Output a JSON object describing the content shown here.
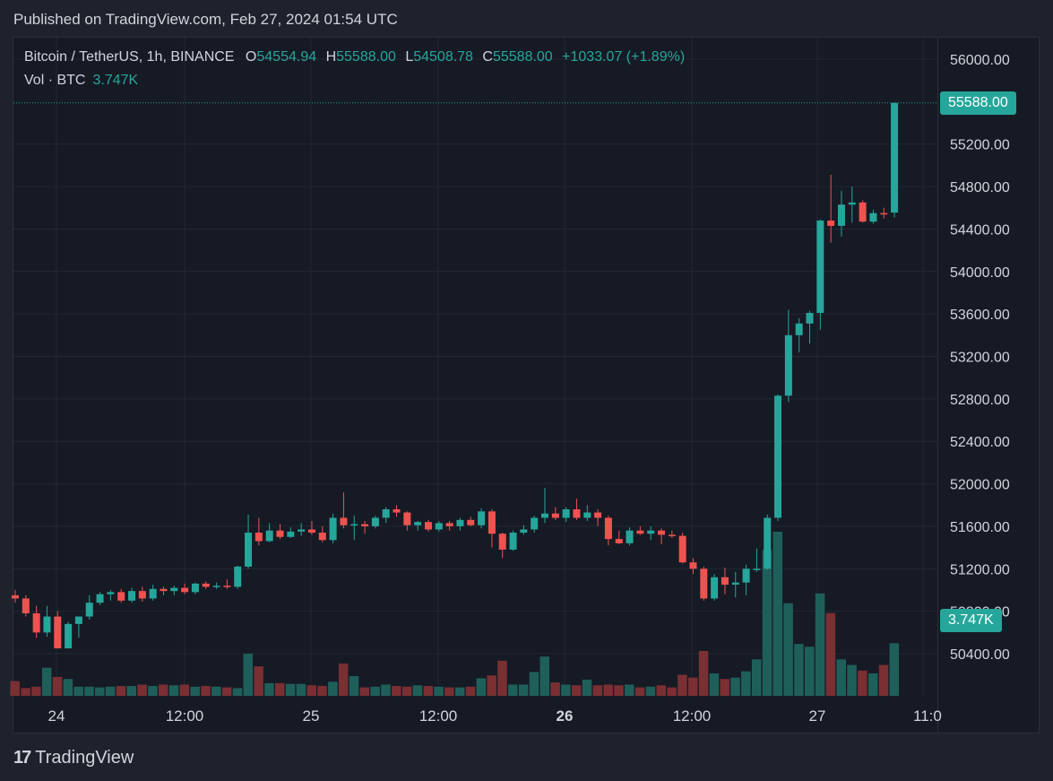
{
  "header": {
    "published": "Published on TradingView.com, Feb 27, 2024 01:54 UTC"
  },
  "legend": {
    "symbol": "Bitcoin / TetherUS, 1h, BINANCE",
    "o_label": "O",
    "o": "54554.94",
    "h_label": "H",
    "h": "55588.00",
    "l_label": "L",
    "l": "54508.78",
    "c_label": "C",
    "c": "55588.00",
    "change": "+1033.07 (+1.89%)"
  },
  "volume_legend": {
    "label": "Vol · BTC",
    "value": "3.747K"
  },
  "price_tag": "55588.00",
  "volume_tag": "3.747K",
  "footer": {
    "brand": "TradingView",
    "logo": "17"
  },
  "colors": {
    "up": "#26a69a",
    "down": "#ef5350",
    "vol_up": "#1f5f5a",
    "vol_down": "#7a2f33",
    "background": "#161a25"
  },
  "chart_data": {
    "type": "candlestick",
    "interval": "1h",
    "y_ticks": [
      "56000.00",
      "55200.00",
      "54800.00",
      "54400.00",
      "54000.00",
      "53600.00",
      "53200.00",
      "52800.00",
      "52400.00",
      "52000.00",
      "51600.00",
      "51200.00",
      "50800.00",
      "50400.00"
    ],
    "x_ticks": [
      "24",
      "12:00",
      "25",
      "12:00",
      "26",
      "12:00",
      "27",
      "11:0"
    ],
    "ylim": [
      50000,
      56300
    ],
    "candles": [
      {
        "o": 50950,
        "h": 51000,
        "l": 50880,
        "c": 50920
      },
      {
        "o": 50920,
        "h": 50950,
        "l": 50750,
        "c": 50780
      },
      {
        "o": 50780,
        "h": 50850,
        "l": 50550,
        "c": 50600
      },
      {
        "o": 50600,
        "h": 50850,
        "l": 50560,
        "c": 50750
      },
      {
        "o": 50750,
        "h": 50800,
        "l": 50450,
        "c": 50450
      },
      {
        "o": 50450,
        "h": 50700,
        "l": 50450,
        "c": 50680
      },
      {
        "o": 50680,
        "h": 50750,
        "l": 50550,
        "c": 50750
      },
      {
        "o": 50750,
        "h": 50950,
        "l": 50720,
        "c": 50880
      },
      {
        "o": 50880,
        "h": 50980,
        "l": 50860,
        "c": 50960
      },
      {
        "o": 50960,
        "h": 51000,
        "l": 50900,
        "c": 50980
      },
      {
        "o": 50980,
        "h": 51010,
        "l": 50880,
        "c": 50900
      },
      {
        "o": 50900,
        "h": 51020,
        "l": 50880,
        "c": 50990
      },
      {
        "o": 50990,
        "h": 51030,
        "l": 50890,
        "c": 50920
      },
      {
        "o": 50920,
        "h": 51050,
        "l": 50900,
        "c": 51010
      },
      {
        "o": 51010,
        "h": 51030,
        "l": 50950,
        "c": 50990
      },
      {
        "o": 50990,
        "h": 51040,
        "l": 50950,
        "c": 51020
      },
      {
        "o": 51020,
        "h": 51060,
        "l": 50960,
        "c": 50980
      },
      {
        "o": 50980,
        "h": 51070,
        "l": 50960,
        "c": 51060
      },
      {
        "o": 51060,
        "h": 51080,
        "l": 51010,
        "c": 51030
      },
      {
        "o": 51030,
        "h": 51070,
        "l": 51010,
        "c": 51040
      },
      {
        "o": 51040,
        "h": 51100,
        "l": 51010,
        "c": 51030
      },
      {
        "o": 51030,
        "h": 51230,
        "l": 51010,
        "c": 51220
      },
      {
        "o": 51220,
        "h": 51710,
        "l": 51200,
        "c": 51540
      },
      {
        "o": 51540,
        "h": 51680,
        "l": 51420,
        "c": 51460
      },
      {
        "o": 51460,
        "h": 51630,
        "l": 51450,
        "c": 51560
      },
      {
        "o": 51560,
        "h": 51620,
        "l": 51480,
        "c": 51500
      },
      {
        "o": 51500,
        "h": 51590,
        "l": 51490,
        "c": 51550
      },
      {
        "o": 51550,
        "h": 51630,
        "l": 51510,
        "c": 51570
      },
      {
        "o": 51570,
        "h": 51650,
        "l": 51520,
        "c": 51540
      },
      {
        "o": 51540,
        "h": 51600,
        "l": 51450,
        "c": 51470
      },
      {
        "o": 51470,
        "h": 51720,
        "l": 51440,
        "c": 51680
      },
      {
        "o": 51680,
        "h": 51920,
        "l": 51580,
        "c": 51610
      },
      {
        "o": 51610,
        "h": 51700,
        "l": 51470,
        "c": 51620
      },
      {
        "o": 51620,
        "h": 51650,
        "l": 51530,
        "c": 51600
      },
      {
        "o": 51600,
        "h": 51700,
        "l": 51580,
        "c": 51680
      },
      {
        "o": 51680,
        "h": 51780,
        "l": 51630,
        "c": 51760
      },
      {
        "o": 51760,
        "h": 51800,
        "l": 51690,
        "c": 51730
      },
      {
        "o": 51730,
        "h": 51740,
        "l": 51560,
        "c": 51610
      },
      {
        "o": 51610,
        "h": 51650,
        "l": 51560,
        "c": 51640
      },
      {
        "o": 51640,
        "h": 51660,
        "l": 51550,
        "c": 51570
      },
      {
        "o": 51570,
        "h": 51650,
        "l": 51550,
        "c": 51630
      },
      {
        "o": 51630,
        "h": 51650,
        "l": 51560,
        "c": 51600
      },
      {
        "o": 51600,
        "h": 51680,
        "l": 51560,
        "c": 51660
      },
      {
        "o": 51660,
        "h": 51690,
        "l": 51600,
        "c": 51610
      },
      {
        "o": 51610,
        "h": 51770,
        "l": 51580,
        "c": 51740
      },
      {
        "o": 51740,
        "h": 51760,
        "l": 51400,
        "c": 51530
      },
      {
        "o": 51530,
        "h": 51540,
        "l": 51300,
        "c": 51380
      },
      {
        "o": 51380,
        "h": 51560,
        "l": 51370,
        "c": 51540
      },
      {
        "o": 51540,
        "h": 51610,
        "l": 51520,
        "c": 51570
      },
      {
        "o": 51570,
        "h": 51700,
        "l": 51540,
        "c": 51680
      },
      {
        "o": 51680,
        "h": 51960,
        "l": 51630,
        "c": 51720
      },
      {
        "o": 51720,
        "h": 51780,
        "l": 51660,
        "c": 51680
      },
      {
        "o": 51680,
        "h": 51780,
        "l": 51640,
        "c": 51760
      },
      {
        "o": 51760,
        "h": 51860,
        "l": 51660,
        "c": 51680
      },
      {
        "o": 51680,
        "h": 51800,
        "l": 51650,
        "c": 51730
      },
      {
        "o": 51730,
        "h": 51760,
        "l": 51600,
        "c": 51680
      },
      {
        "o": 51680,
        "h": 51700,
        "l": 51420,
        "c": 51480
      },
      {
        "o": 51480,
        "h": 51560,
        "l": 51430,
        "c": 51440
      },
      {
        "o": 51440,
        "h": 51590,
        "l": 51420,
        "c": 51560
      },
      {
        "o": 51560,
        "h": 51600,
        "l": 51520,
        "c": 51530
      },
      {
        "o": 51530,
        "h": 51600,
        "l": 51470,
        "c": 51560
      },
      {
        "o": 51560,
        "h": 51580,
        "l": 51430,
        "c": 51520
      },
      {
        "o": 51520,
        "h": 51560,
        "l": 51490,
        "c": 51510
      },
      {
        "o": 51510,
        "h": 51540,
        "l": 51250,
        "c": 51260
      },
      {
        "o": 51260,
        "h": 51300,
        "l": 51150,
        "c": 51200
      },
      {
        "o": 51200,
        "h": 51220,
        "l": 50900,
        "c": 50920
      },
      {
        "o": 50920,
        "h": 51150,
        "l": 50900,
        "c": 51120
      },
      {
        "o": 51120,
        "h": 51210,
        "l": 50960,
        "c": 51050
      },
      {
        "o": 51050,
        "h": 51170,
        "l": 50930,
        "c": 51070
      },
      {
        "o": 51070,
        "h": 51240,
        "l": 50950,
        "c": 51200
      },
      {
        "o": 51200,
        "h": 51390,
        "l": 51170,
        "c": 51200
      },
      {
        "o": 51200,
        "h": 51710,
        "l": 51190,
        "c": 51680
      },
      {
        "o": 51680,
        "h": 52840,
        "l": 51650,
        "c": 52830
      },
      {
        "o": 52830,
        "h": 53640,
        "l": 52770,
        "c": 53400
      },
      {
        "o": 53400,
        "h": 53560,
        "l": 53240,
        "c": 53510
      },
      {
        "o": 53510,
        "h": 53630,
        "l": 53320,
        "c": 53610
      },
      {
        "o": 53610,
        "h": 54490,
        "l": 53450,
        "c": 54480
      },
      {
        "o": 54480,
        "h": 54910,
        "l": 54270,
        "c": 54430
      },
      {
        "o": 54430,
        "h": 54760,
        "l": 54330,
        "c": 54630
      },
      {
        "o": 54630,
        "h": 54800,
        "l": 54460,
        "c": 54650
      },
      {
        "o": 54650,
        "h": 54670,
        "l": 54460,
        "c": 54470
      },
      {
        "o": 54470,
        "h": 54580,
        "l": 54450,
        "c": 54550
      },
      {
        "o": 54550,
        "h": 54600,
        "l": 54500,
        "c": 54540
      },
      {
        "o": 54554.94,
        "h": 55588.0,
        "l": 54508.78,
        "c": 55588.0
      }
    ],
    "volume": [
      1.05,
      0.55,
      0.65,
      2.0,
      1.35,
      1.2,
      0.65,
      0.65,
      0.6,
      0.65,
      0.7,
      0.7,
      0.8,
      0.7,
      0.8,
      0.75,
      0.8,
      0.65,
      0.7,
      0.65,
      0.6,
      0.55,
      3.0,
      2.1,
      0.9,
      0.9,
      0.85,
      0.85,
      0.75,
      0.7,
      1.0,
      2.3,
      1.4,
      0.6,
      0.65,
      0.8,
      0.7,
      0.65,
      0.75,
      0.7,
      0.65,
      0.6,
      0.6,
      0.65,
      1.25,
      1.45,
      2.5,
      0.8,
      0.8,
      1.7,
      2.8,
      0.95,
      0.8,
      0.75,
      1.15,
      0.75,
      0.8,
      0.75,
      0.8,
      0.6,
      0.65,
      0.75,
      0.6,
      1.5,
      1.3,
      3.2,
      1.6,
      1.2,
      1.3,
      1.75,
      2.6,
      10.4,
      11.7,
      6.6,
      3.7,
      3.5,
      7.3,
      5.9,
      2.6,
      2.2,
      1.8,
      1.6,
      2.2,
      3.747
    ],
    "vol_ylim": [
      0,
      20
    ]
  }
}
